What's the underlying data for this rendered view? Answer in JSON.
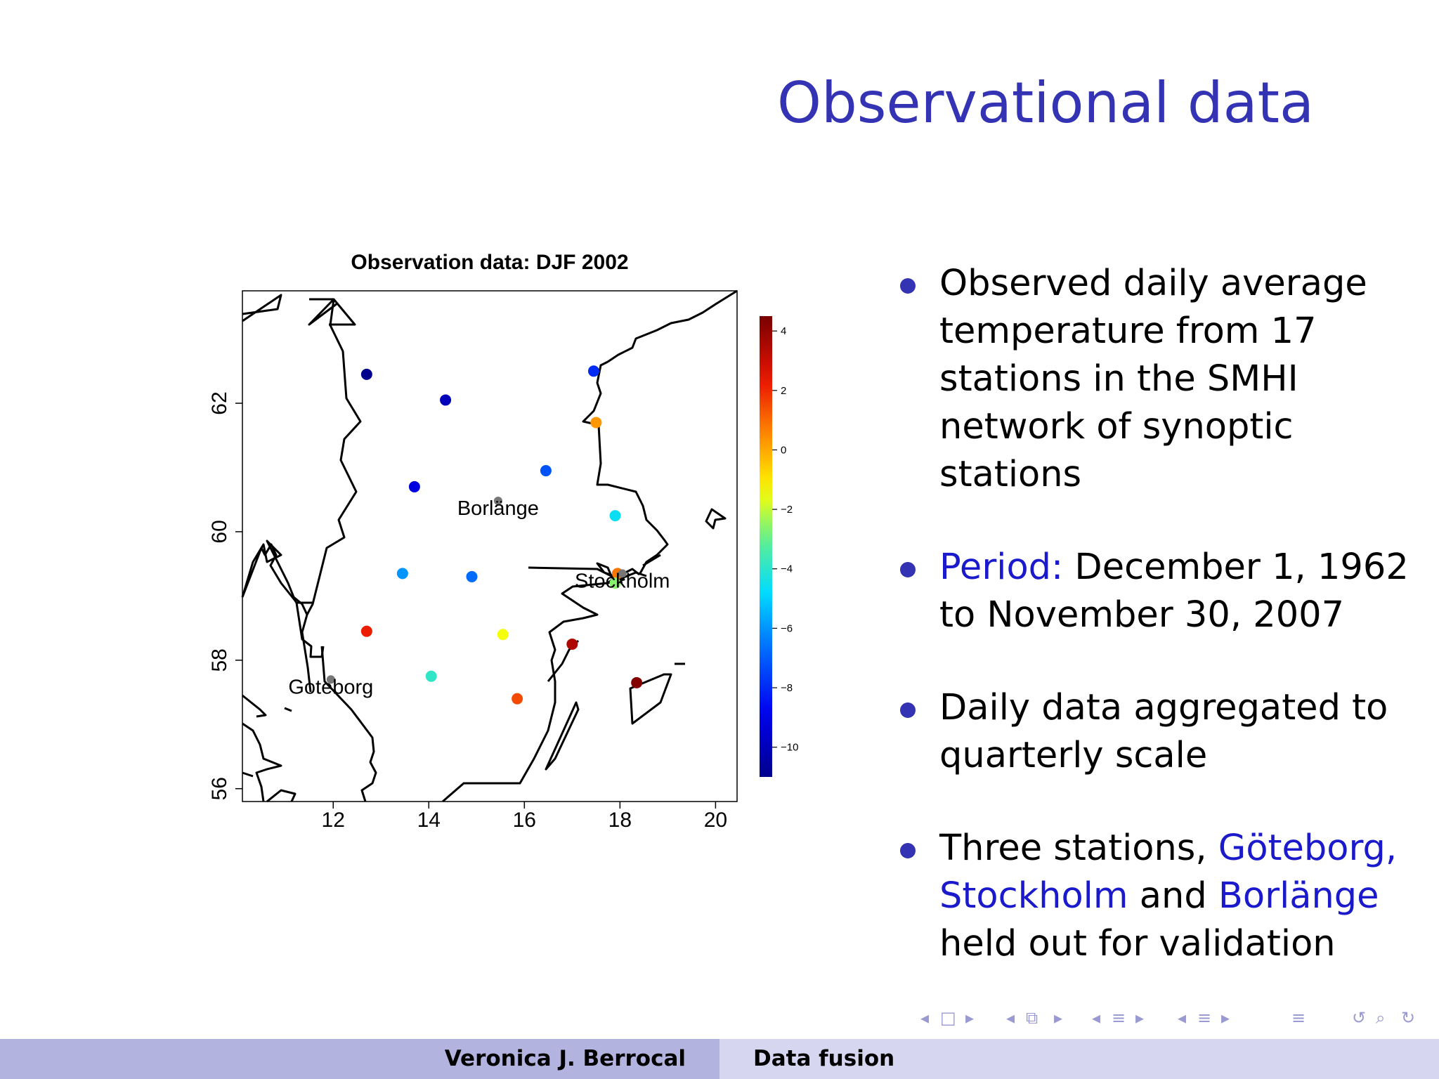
{
  "slide": {
    "title": "Observational data"
  },
  "bullets": [
    {
      "parts": [
        {
          "text": "Observed daily average temperature from 17 stations in the SMHI network of synoptic stations",
          "highlight": false
        }
      ]
    },
    {
      "parts": [
        {
          "text": "Period:",
          "highlight": true
        },
        {
          "text": " December 1, 1962 to November 30, 2007",
          "highlight": false
        }
      ]
    },
    {
      "parts": [
        {
          "text": "Daily data aggregated to quarterly scale",
          "highlight": false
        }
      ]
    },
    {
      "parts": [
        {
          "text": "Three stations, ",
          "highlight": false
        },
        {
          "text": "Göteborg,",
          "highlight": true
        },
        {
          "text": " ",
          "highlight": false
        },
        {
          "text": "Stockholm",
          "highlight": true
        },
        {
          "text": " and ",
          "highlight": false
        },
        {
          "text": "Borlänge",
          "highlight": true
        },
        {
          "text": " held out for validation",
          "highlight": false
        }
      ]
    }
  ],
  "colors": {
    "title": "#3333b3",
    "highlight": "#1a1acc",
    "footer_left": "#b3b3e0",
    "footer_right": "#d6d6f0",
    "nav_icons": "#9a9ad2"
  },
  "chart_data": {
    "type": "scatter",
    "title": "Observation data: DJF 2002",
    "xlabel": "",
    "ylabel": "",
    "xlim": [
      10.1,
      20.45
    ],
    "ylim": [
      55.8,
      63.75
    ],
    "xticks": [
      "12",
      "14",
      "16",
      "18",
      "20"
    ],
    "yticks": [
      "56",
      "58",
      "60",
      "62"
    ],
    "colorbar": {
      "min": -11,
      "max": 4.5,
      "ticks": [
        "4",
        "2",
        "0",
        "−2",
        "−4",
        "−6",
        "−8",
        "−10"
      ]
    },
    "stations": [
      {
        "lon": 12.7,
        "lat": 62.45,
        "value": -11
      },
      {
        "lon": 14.35,
        "lat": 62.05,
        "value": -10
      },
      {
        "lon": 17.45,
        "lat": 62.5,
        "value": -8
      },
      {
        "lon": 17.5,
        "lat": 61.7,
        "value": 0.3
      },
      {
        "lon": 16.45,
        "lat": 60.95,
        "value": -7.2
      },
      {
        "lon": 13.7,
        "lat": 60.7,
        "value": -9.2
      },
      {
        "lon": 17.9,
        "lat": 60.25,
        "value": -4.6
      },
      {
        "lon": 13.45,
        "lat": 59.35,
        "value": -6
      },
      {
        "lon": 14.9,
        "lat": 59.3,
        "value": -6.7
      },
      {
        "lon": 17.95,
        "lat": 59.35,
        "value": 0.8
      },
      {
        "lon": 17.9,
        "lat": 59.2,
        "value": -2.6
      },
      {
        "lon": 12.7,
        "lat": 58.45,
        "value": 2.2
      },
      {
        "lon": 15.55,
        "lat": 58.4,
        "value": -1.5
      },
      {
        "lon": 17.0,
        "lat": 58.25,
        "value": 3.5
      },
      {
        "lon": 14.05,
        "lat": 57.75,
        "value": -3.9
      },
      {
        "lon": 15.85,
        "lat": 57.4,
        "value": 1.5
      },
      {
        "lon": 18.35,
        "lat": 57.65,
        "value": 4.3
      }
    ],
    "holdout_stations": [
      {
        "name": "Borlänge",
        "lon": 15.45,
        "lat": 60.48
      },
      {
        "name": "Stockholm",
        "lon": 18.05,
        "lat": 59.35
      },
      {
        "name": "Goteborg",
        "lon": 11.95,
        "lat": 57.7
      }
    ]
  },
  "footer": {
    "left": "Veronica J. Berrocal",
    "right": "Data fusion"
  },
  "nav_icons": [
    "nav-frame-prev-icon",
    "nav-frame-icon",
    "nav-frame-next-icon",
    "nav-subsection-prev-icon",
    "nav-subsection-icon",
    "nav-subsection-next-icon",
    "nav-section-prev-icon",
    "nav-section-icon",
    "nav-section-next-icon",
    "nav-doc-prev-icon",
    "nav-doc-icon",
    "nav-doc-next-icon",
    "nav-menu-icon",
    "nav-undo-icon",
    "nav-search-icon",
    "nav-redo-icon"
  ]
}
